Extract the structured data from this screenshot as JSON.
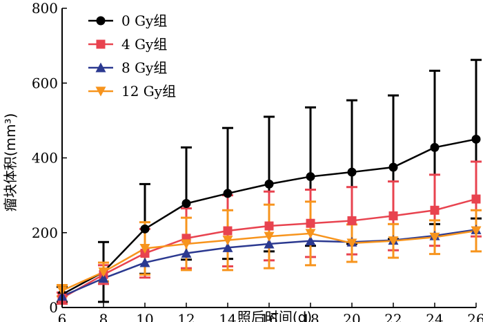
{
  "chart_data": {
    "type": "line",
    "title": "",
    "xlabel": "照后时间(d)",
    "ylabel": "瘤块体积(mm³)",
    "x": [
      6,
      8,
      10,
      12,
      14,
      16,
      18,
      20,
      22,
      24,
      26
    ],
    "xlim": [
      6,
      26
    ],
    "ylim": [
      0,
      800
    ],
    "xticks": [
      "6",
      "8",
      "10",
      "12",
      "14",
      "16",
      "18",
      "20",
      "22",
      "24",
      "26"
    ],
    "yticks": [
      "0",
      "200",
      "400",
      "600",
      "800"
    ],
    "grid": false,
    "legend_position": "top-left",
    "series": [
      {
        "name": "0 Gy组",
        "color": "#000000",
        "marker": "circle",
        "values": [
          35,
          95,
          210,
          278,
          305,
          330,
          350,
          362,
          375,
          428,
          450
        ],
        "error": [
          20,
          80,
          120,
          150,
          175,
          180,
          185,
          192,
          192,
          205,
          212
        ]
      },
      {
        "name": "4 Gy组",
        "color": "#e8434f",
        "marker": "square",
        "values": [
          25,
          88,
          145,
          185,
          205,
          218,
          225,
          232,
          245,
          260,
          290
        ],
        "error": [
          15,
          25,
          65,
          80,
          95,
          92,
          90,
          90,
          92,
          95,
          100
        ]
      },
      {
        "name": "8 Gy组",
        "color": "#2b3990",
        "marker": "triangle-up",
        "values": [
          30,
          78,
          120,
          145,
          160,
          170,
          178,
          175,
          180,
          192,
          208
        ]
      },
      {
        "name": "12 Gy组",
        "color": "#f7941d",
        "marker": "triangle-down",
        "values": [
          45,
          95,
          158,
          170,
          180,
          190,
          198,
          172,
          178,
          188,
          205
        ],
        "error": [
          15,
          25,
          70,
          70,
          80,
          85,
          85,
          50,
          45,
          45,
          55
        ]
      }
    ]
  }
}
